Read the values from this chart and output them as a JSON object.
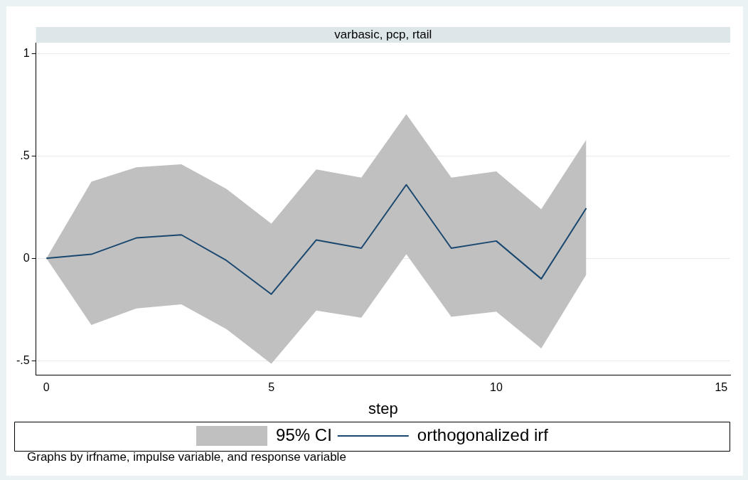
{
  "chart_data": {
    "type": "line",
    "title": "varbasic, pcp, rtail",
    "xlabel": "step",
    "x": [
      0,
      1,
      2,
      3,
      4,
      5,
      6,
      7,
      8,
      9,
      10,
      11,
      12
    ],
    "series": [
      {
        "name": "orthogonalized irf",
        "color": "#1a476f",
        "values": [
          0,
          0.02,
          0.1,
          0.115,
          -0.01,
          -0.175,
          0.09,
          0.05,
          0.36,
          0.05,
          0.085,
          -0.1,
          0.245
        ],
        "lower": [
          0,
          -0.325,
          -0.245,
          -0.225,
          -0.345,
          -0.515,
          -0.255,
          -0.29,
          0.02,
          -0.285,
          -0.26,
          -0.44,
          -0.08
        ],
        "upper": [
          0,
          0.375,
          0.445,
          0.46,
          0.34,
          0.17,
          0.435,
          0.395,
          0.705,
          0.395,
          0.425,
          0.24,
          0.58
        ]
      }
    ],
    "xlim": [
      -0.23,
      15.2
    ],
    "xticks": [
      0,
      5,
      10,
      15
    ],
    "ylim": [
      -0.57,
      1.054
    ],
    "yticks": [
      {
        "value": -0.5,
        "label": "-.5"
      },
      0,
      {
        "value": 0.5,
        "label": ".5"
      },
      1
    ],
    "grid": "y",
    "legend": "bottom",
    "marker": "none",
    "line_style": "solid",
    "annotations": [
      "95% CI",
      "Graphs by irfname, impulse variable, and response variable"
    ]
  }
}
